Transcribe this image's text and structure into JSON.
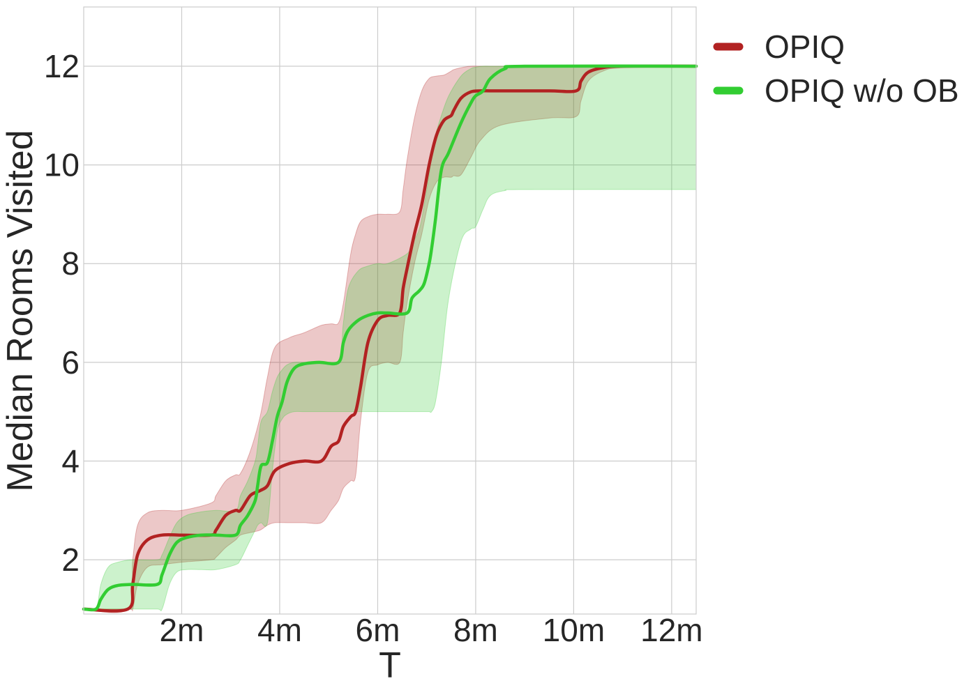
{
  "chart_data": {
    "type": "line",
    "title": "",
    "xlabel": "T",
    "ylabel": "Median Rooms Visited",
    "xlim": [
      0,
      12.5
    ],
    "ylim": [
      0.9,
      13.2
    ],
    "x_unit_suffix": "m",
    "x_ticks": [
      2,
      4,
      6,
      8,
      10,
      12
    ],
    "y_ticks": [
      2,
      4,
      6,
      8,
      10,
      12
    ],
    "grid": true,
    "legend_position": "outside-top-right",
    "series": [
      {
        "name": "OPIQ",
        "color": "#b22222",
        "x": [
          0,
          0.9,
          1.0,
          1.1,
          1.3,
          1.6,
          2.0,
          2.6,
          2.7,
          2.9,
          3.1,
          3.2,
          3.4,
          3.6,
          3.75,
          3.9,
          4.2,
          4.5,
          4.85,
          5.05,
          5.2,
          5.3,
          5.45,
          5.55,
          5.65,
          5.8,
          6.0,
          6.2,
          6.45,
          6.52,
          6.6,
          6.75,
          6.9,
          7.05,
          7.2,
          7.35,
          7.5,
          7.55,
          7.7,
          7.9,
          8.1,
          8.5,
          9.5,
          10.05,
          10.15,
          10.3,
          10.6,
          11.0,
          12.5
        ],
        "y": [
          1,
          1,
          1.5,
          2.1,
          2.4,
          2.5,
          2.5,
          2.5,
          2.6,
          2.9,
          3.0,
          3.0,
          3.3,
          3.4,
          3.5,
          3.8,
          3.95,
          4.0,
          4.0,
          4.3,
          4.4,
          4.7,
          4.9,
          5.0,
          5.5,
          6.4,
          6.85,
          6.95,
          7.0,
          7.5,
          7.9,
          8.6,
          9.2,
          10.0,
          10.6,
          10.9,
          11.0,
          11.1,
          11.35,
          11.48,
          11.5,
          11.5,
          11.5,
          11.5,
          11.7,
          11.88,
          11.97,
          12.0,
          12.0
        ],
        "upper": [
          1,
          1,
          2.0,
          2.7,
          2.95,
          3.0,
          3.0,
          3.15,
          3.3,
          3.6,
          3.72,
          3.75,
          4.2,
          4.9,
          5.7,
          6.3,
          6.5,
          6.6,
          6.75,
          6.78,
          6.8,
          7.2,
          8.2,
          8.6,
          8.85,
          8.95,
          9.0,
          9.0,
          9.05,
          9.5,
          10.1,
          10.95,
          11.5,
          11.75,
          11.8,
          11.82,
          11.9,
          11.93,
          11.97,
          12.0,
          12.0,
          12.0,
          12.0,
          12.0,
          12.0,
          12.0,
          12.0,
          12.0,
          12.0
        ],
        "lower": [
          1,
          1,
          1.0,
          1.5,
          1.85,
          1.9,
          1.95,
          2.0,
          2.05,
          2.25,
          2.4,
          2.5,
          2.55,
          2.6,
          2.7,
          2.75,
          2.75,
          2.75,
          2.75,
          3.0,
          3.2,
          3.45,
          3.6,
          3.7,
          4.8,
          5.8,
          5.95,
          6.0,
          6.0,
          6.6,
          7.2,
          8.0,
          8.6,
          9.3,
          9.65,
          9.75,
          9.75,
          9.78,
          9.8,
          10.15,
          10.5,
          10.8,
          10.95,
          10.98,
          11.3,
          11.7,
          11.9,
          11.97,
          12.0
        ]
      },
      {
        "name": "OPIQ w/o OB",
        "color": "#32cd32",
        "x": [
          0,
          0.25,
          0.35,
          0.5,
          0.7,
          1.0,
          1.5,
          1.6,
          1.75,
          1.9,
          2.1,
          2.4,
          2.7,
          3.1,
          3.2,
          3.35,
          3.5,
          3.55,
          3.62,
          3.75,
          3.85,
          3.95,
          4.05,
          4.15,
          4.3,
          4.5,
          4.8,
          5.2,
          5.3,
          5.4,
          5.6,
          5.8,
          6.0,
          6.2,
          6.6,
          6.7,
          6.85,
          6.95,
          7.05,
          7.1,
          7.18,
          7.3,
          7.45,
          7.7,
          7.9,
          8.0,
          8.15,
          8.3,
          8.6,
          9.0,
          12.5
        ],
        "y": [
          1,
          1,
          1.2,
          1.4,
          1.48,
          1.5,
          1.5,
          1.7,
          2.1,
          2.35,
          2.45,
          2.5,
          2.5,
          2.5,
          2.7,
          2.9,
          3.2,
          3.5,
          3.9,
          3.97,
          4.4,
          4.9,
          5.2,
          5.6,
          5.88,
          5.97,
          6.0,
          6.0,
          6.4,
          6.65,
          6.85,
          6.95,
          7.0,
          7.0,
          7.0,
          7.3,
          7.45,
          7.6,
          8.0,
          8.3,
          8.9,
          9.9,
          10.25,
          10.85,
          11.25,
          11.4,
          11.5,
          11.75,
          11.95,
          12.0,
          12.0
        ],
        "upper": [
          1,
          1,
          1.5,
          1.85,
          1.95,
          2.0,
          2.0,
          2.1,
          2.45,
          2.75,
          2.9,
          2.97,
          3.0,
          3.0,
          3.3,
          3.6,
          4.0,
          4.3,
          4.8,
          5.0,
          5.4,
          5.7,
          5.85,
          5.95,
          6.0,
          6.0,
          6.0,
          6.0,
          6.8,
          7.5,
          7.85,
          7.95,
          8.0,
          8.0,
          8.2,
          8.4,
          8.7,
          9.2,
          9.8,
          10.2,
          10.6,
          11.0,
          11.4,
          11.8,
          11.95,
          11.98,
          12.0,
          12.0,
          12.0,
          12.0,
          12.0
        ],
        "lower": [
          1,
          1,
          1.0,
          1.0,
          1.0,
          1.0,
          1.0,
          1.0,
          1.5,
          1.75,
          1.8,
          1.8,
          1.8,
          1.9,
          2.0,
          2.3,
          2.6,
          2.7,
          2.75,
          2.75,
          3.8,
          4.6,
          4.85,
          4.95,
          5.0,
          5.0,
          5.0,
          5.0,
          5.0,
          5.0,
          5.0,
          5.0,
          5.0,
          5.0,
          5.0,
          5.0,
          5.0,
          5.0,
          5.0,
          5.0,
          5.2,
          6.0,
          7.3,
          8.45,
          8.7,
          8.75,
          9.1,
          9.38,
          9.48,
          9.5,
          9.5
        ]
      }
    ]
  }
}
